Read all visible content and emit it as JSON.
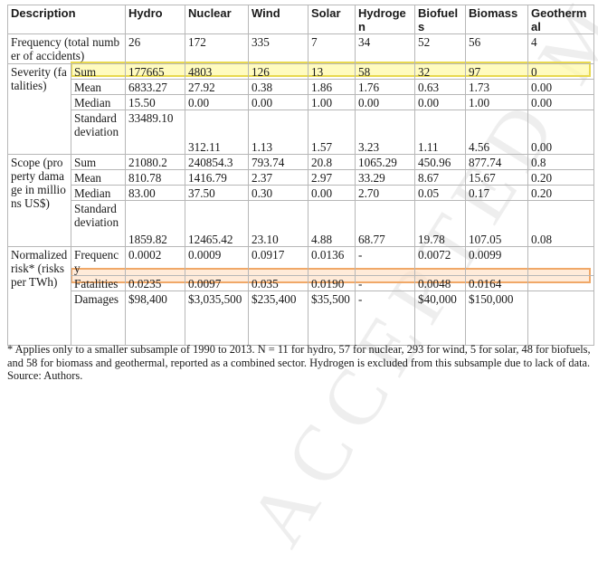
{
  "headers": [
    "Description",
    "Hydro",
    "Nuclear",
    "Wind",
    "Solar",
    "Hydrogen",
    "Biofuels",
    "Biomass",
    "Geothermal"
  ],
  "frequency": {
    "label": "Frequency (total number of accidents)",
    "values": [
      "26",
      "172",
      "335",
      "7",
      "34",
      "52",
      "56",
      "4"
    ]
  },
  "severity": {
    "group": "Severity (fatalities)",
    "rows": [
      {
        "stat": "Sum",
        "values": [
          "177665",
          "4803",
          "126",
          "13",
          "58",
          "32",
          "97",
          "0"
        ]
      },
      {
        "stat": "Mean",
        "values": [
          "6833.27",
          "27.92",
          "0.38",
          "1.86",
          "1.76",
          "0.63",
          "1.73",
          "0.00"
        ]
      },
      {
        "stat": "Median",
        "values": [
          "15.50",
          "0.00",
          "0.00",
          "1.00",
          "0.00",
          "0.00",
          "1.00",
          "0.00"
        ]
      },
      {
        "stat": "Standard deviation",
        "values": [
          "33489.10",
          "312.11",
          "1.13",
          "1.57",
          "3.23",
          "1.11",
          "4.56",
          "0.00"
        ]
      }
    ]
  },
  "scope": {
    "group": "Scope (property damage in millions US$)",
    "rows": [
      {
        "stat": "Sum",
        "values": [
          "21080.2",
          "240854.3",
          "793.74",
          "20.8",
          "1065.29",
          "450.96",
          "877.74",
          "0.8"
        ]
      },
      {
        "stat": "Mean",
        "values": [
          "810.78",
          "1416.79",
          "2.37",
          "2.97",
          "33.29",
          "8.67",
          "15.67",
          "0.20"
        ]
      },
      {
        "stat": "Median",
        "values": [
          "83.00",
          "37.50",
          "0.30",
          "0.00",
          "2.70",
          "0.05",
          "0.17",
          "0.20"
        ]
      },
      {
        "stat": "Standard deviation",
        "values": [
          "1859.82",
          "12465.42",
          "23.10",
          "4.88",
          "68.77",
          "19.78",
          "107.05",
          "0.08"
        ]
      }
    ]
  },
  "normalized": {
    "group": "Normalized risk* (risks per TWh)",
    "rows": [
      {
        "stat": "Frequency",
        "values": [
          "0.0002",
          "0.0009",
          "0.0917",
          "0.0136",
          "-",
          "0.0072",
          "0.0099",
          ""
        ]
      },
      {
        "stat": "Fatalities",
        "values": [
          "0.0235",
          "0.0097",
          "0.035",
          "0.0190",
          "-",
          "0.0048",
          "0.0164",
          ""
        ]
      },
      {
        "stat": "Damages",
        "values": [
          "$98,400",
          "$3,035,500",
          "$235,400",
          "$35,500",
          "-",
          "$40,000",
          "$150,000",
          ""
        ]
      }
    ]
  },
  "watermark": "ACCEPTED MANU",
  "footnote": "* Applies only to a smaller subsample of 1990 to 2013. N = 11 for hydro, 57 for nuclear, 293 for wind, 5 for solar, 48 for biofuels, and 58 for biomass and geothermal, reported as a combined sector. Hydrogen is excluded from this subsample due to lack of data.   Source: Authors."
}
